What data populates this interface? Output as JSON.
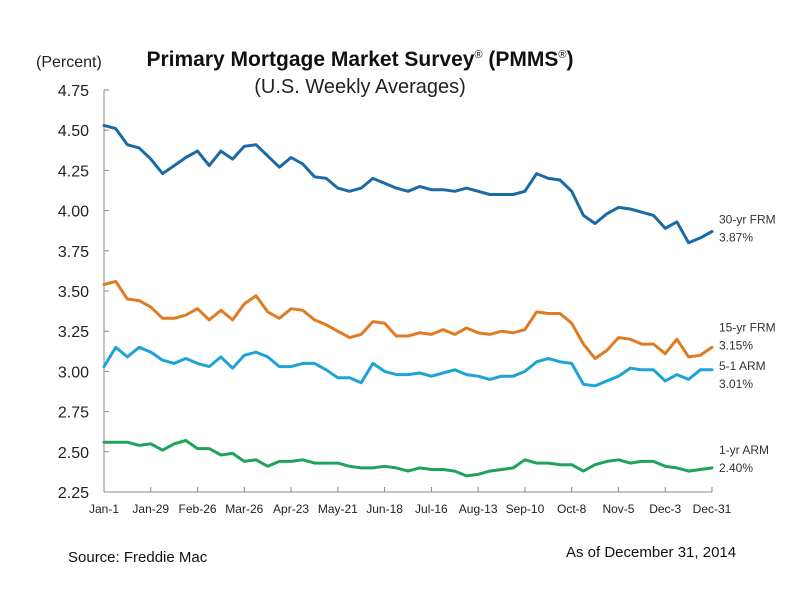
{
  "chart_data": {
    "type": "line",
    "title": "Primary Mortgage Market Survey® (PMMS®)",
    "title_parts": {
      "main_a": "Primary Mortgage Market Survey",
      "reg1": "®",
      "main_b": " (PMMS",
      "reg2": "®",
      "main_c": ")"
    },
    "subtitle": "(U.S. Weekly Averages)",
    "ylabel": "(Percent)",
    "xlabel": "",
    "ylim": [
      2.25,
      4.75
    ],
    "yticks": [
      "4.75",
      "4.50",
      "4.25",
      "4.00",
      "3.75",
      "3.50",
      "3.25",
      "3.00",
      "2.75",
      "2.50",
      "2.25"
    ],
    "ytick_values": [
      4.75,
      4.5,
      4.25,
      4.0,
      3.75,
      3.5,
      3.25,
      3.0,
      2.75,
      2.5,
      2.25
    ],
    "xtick_labels": [
      "Jan-1",
      "Jan-29",
      "Feb-26",
      "Mar-26",
      "Apr-23",
      "May-21",
      "Jun-18",
      "Jul-16",
      "Aug-13",
      "Sep-10",
      "Oct-8",
      "Nov-5",
      "Dec-3",
      "Dec-31"
    ],
    "xtick_indices": [
      0,
      4,
      8,
      12,
      16,
      20,
      24,
      28,
      32,
      36,
      40,
      44,
      48,
      52
    ],
    "n_points": 53,
    "grid": false,
    "legend": "right-end labels",
    "series": [
      {
        "name": "30-yr FRM",
        "end_label": "3.87%",
        "color": "#1b6aa5",
        "values": [
          4.53,
          4.51,
          4.41,
          4.39,
          4.32,
          4.23,
          4.28,
          4.33,
          4.37,
          4.28,
          4.37,
          4.32,
          4.4,
          4.41,
          4.34,
          4.27,
          4.33,
          4.29,
          4.21,
          4.2,
          4.14,
          4.12,
          4.14,
          4.2,
          4.17,
          4.14,
          4.12,
          4.15,
          4.13,
          4.13,
          4.12,
          4.14,
          4.12,
          4.1,
          4.1,
          4.1,
          4.12,
          4.23,
          4.2,
          4.19,
          4.12,
          3.97,
          3.92,
          3.98,
          4.02,
          4.01,
          3.99,
          3.97,
          3.89,
          3.93,
          3.8,
          3.83,
          3.87
        ]
      },
      {
        "name": "15-yr FRM",
        "end_label": "3.15%",
        "color": "#e07b24",
        "values": [
          3.54,
          3.56,
          3.45,
          3.44,
          3.4,
          3.33,
          3.33,
          3.35,
          3.39,
          3.32,
          3.38,
          3.32,
          3.42,
          3.47,
          3.37,
          3.33,
          3.39,
          3.38,
          3.32,
          3.29,
          3.25,
          3.21,
          3.23,
          3.31,
          3.3,
          3.22,
          3.22,
          3.24,
          3.23,
          3.26,
          3.23,
          3.27,
          3.24,
          3.23,
          3.25,
          3.24,
          3.26,
          3.37,
          3.36,
          3.36,
          3.3,
          3.17,
          3.08,
          3.13,
          3.21,
          3.2,
          3.17,
          3.17,
          3.11,
          3.2,
          3.09,
          3.1,
          3.15
        ]
      },
      {
        "name": "5-1 ARM",
        "end_label": "3.01%",
        "color": "#1ea3d6",
        "values": [
          3.03,
          3.15,
          3.09,
          3.15,
          3.12,
          3.07,
          3.05,
          3.08,
          3.05,
          3.03,
          3.09,
          3.02,
          3.1,
          3.12,
          3.09,
          3.03,
          3.03,
          3.05,
          3.05,
          3.01,
          2.96,
          2.96,
          2.93,
          3.05,
          3.0,
          2.98,
          2.98,
          2.99,
          2.97,
          2.99,
          3.01,
          2.98,
          2.97,
          2.95,
          2.97,
          2.97,
          3.0,
          3.06,
          3.08,
          3.06,
          3.05,
          2.92,
          2.91,
          2.94,
          2.97,
          3.02,
          3.01,
          3.01,
          2.94,
          2.98,
          2.95,
          3.01,
          3.01
        ]
      },
      {
        "name": "1-yr ARM",
        "end_label": "2.40%",
        "color": "#1fa35a",
        "values": [
          2.56,
          2.56,
          2.56,
          2.54,
          2.55,
          2.51,
          2.55,
          2.57,
          2.52,
          2.52,
          2.48,
          2.49,
          2.44,
          2.45,
          2.41,
          2.44,
          2.44,
          2.45,
          2.43,
          2.43,
          2.43,
          2.41,
          2.4,
          2.4,
          2.41,
          2.4,
          2.38,
          2.4,
          2.39,
          2.39,
          2.38,
          2.35,
          2.36,
          2.38,
          2.39,
          2.4,
          2.45,
          2.43,
          2.43,
          2.42,
          2.42,
          2.38,
          2.42,
          2.44,
          2.45,
          2.43,
          2.44,
          2.44,
          2.41,
          2.4,
          2.38,
          2.39,
          2.4
        ]
      }
    ]
  },
  "footer": {
    "source": "Source: Freddie Mac",
    "as_of": "As of December 31, 2014"
  }
}
